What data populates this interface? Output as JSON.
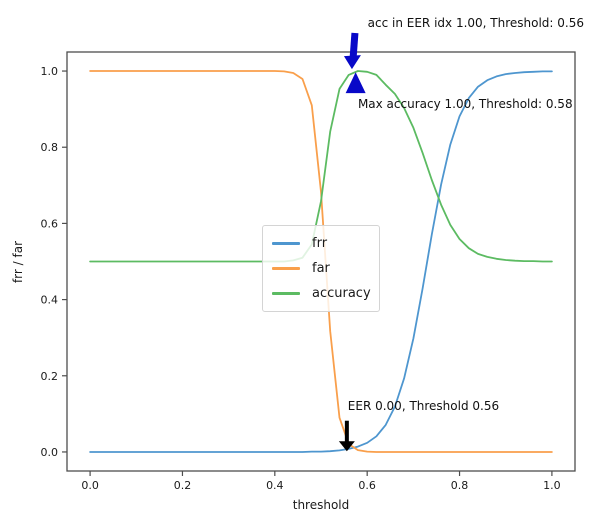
{
  "figure": {
    "background": "#ffffff",
    "spine_color": "#4d4d4d",
    "tick_color": "#1a1a1a"
  },
  "chart_data": {
    "type": "line",
    "title": "",
    "xlabel": "threshold",
    "ylabel": "frr / far",
    "xlim": [
      -0.05,
      1.05
    ],
    "ylim": [
      -0.05,
      1.05
    ],
    "xticks": [
      "0.0",
      "0.2",
      "0.4",
      "0.6",
      "0.8",
      "1.0"
    ],
    "yticks": [
      "0.0",
      "0.2",
      "0.4",
      "0.6",
      "0.8",
      "1.0"
    ],
    "grid": false,
    "legend": {
      "position": "center",
      "entries": [
        "frr",
        "far",
        "accuracy"
      ]
    },
    "x": [
      0.0,
      0.02,
      0.04,
      0.06,
      0.08,
      0.1,
      0.12,
      0.14,
      0.16,
      0.18,
      0.2,
      0.22,
      0.24,
      0.26,
      0.28,
      0.3,
      0.32,
      0.34,
      0.36,
      0.38,
      0.4,
      0.42,
      0.44,
      0.46,
      0.48,
      0.5,
      0.52,
      0.54,
      0.56,
      0.58,
      0.6,
      0.62,
      0.64,
      0.66,
      0.68,
      0.7,
      0.72,
      0.74,
      0.76,
      0.78,
      0.8,
      0.82,
      0.84,
      0.86,
      0.88,
      0.9,
      0.92,
      0.94,
      0.96,
      0.98,
      1.0
    ],
    "series": [
      {
        "name": "frr",
        "color": "#4e96cf",
        "values": [
          0.0,
          0.0,
          0.0,
          0.0,
          0.0,
          0.0,
          0.0,
          0.0,
          0.0,
          0.0,
          0.0,
          0.0,
          0.0,
          0.0,
          0.0,
          0.0,
          0.0,
          0.0,
          0.0,
          0.0,
          0.0,
          0.0,
          0.0,
          0.0,
          0.001,
          0.001,
          0.002,
          0.004,
          0.008,
          0.014,
          0.024,
          0.041,
          0.071,
          0.119,
          0.193,
          0.298,
          0.429,
          0.571,
          0.702,
          0.807,
          0.881,
          0.929,
          0.959,
          0.976,
          0.986,
          0.992,
          0.995,
          0.997,
          0.998,
          0.999,
          0.999
        ]
      },
      {
        "name": "far",
        "color": "#f99f4b",
        "values": [
          1.0,
          1.0,
          1.0,
          1.0,
          1.0,
          1.0,
          1.0,
          1.0,
          1.0,
          1.0,
          1.0,
          1.0,
          1.0,
          1.0,
          1.0,
          1.0,
          1.0,
          1.0,
          1.0,
          1.0,
          1.0,
          0.999,
          0.995,
          0.979,
          0.91,
          0.683,
          0.317,
          0.09,
          0.021,
          0.005,
          0.001,
          0.0,
          0.0,
          0.0,
          0.0,
          0.0,
          0.0,
          0.0,
          0.0,
          0.0,
          0.0,
          0.0,
          0.0,
          0.0,
          0.0,
          0.0,
          0.0,
          0.0,
          0.0,
          0.0,
          0.0
        ]
      },
      {
        "name": "accuracy",
        "color": "#5cbb62",
        "values": [
          0.5,
          0.5,
          0.5,
          0.5,
          0.5,
          0.5,
          0.5,
          0.5,
          0.5,
          0.5,
          0.5,
          0.5,
          0.5,
          0.5,
          0.5,
          0.5,
          0.5,
          0.5,
          0.5,
          0.5,
          0.5,
          0.5,
          0.503,
          0.51,
          0.545,
          0.658,
          0.841,
          0.953,
          0.99,
          1.0,
          0.998,
          0.99,
          0.964,
          0.94,
          0.903,
          0.851,
          0.785,
          0.714,
          0.649,
          0.596,
          0.559,
          0.535,
          0.52,
          0.512,
          0.507,
          0.504,
          0.502,
          0.501,
          0.501,
          0.5,
          0.5
        ]
      }
    ],
    "annotations": [
      {
        "name": "acc-in-eer",
        "text": "acc in EER idx 1.00, Threshold: 0.56",
        "text_x": 0.601,
        "text_y": 1.123,
        "arrow": {
          "type": "fancy-down",
          "color": "#0808c8",
          "x": 0.567,
          "y_tip": 1.005,
          "y_tail": 1.1
        }
      },
      {
        "name": "max-accuracy",
        "text": "Max accuracy 1.00, Threshold: 0.58",
        "text_x": 0.58,
        "text_y": 0.911,
        "arrow": {
          "type": "triangle-up",
          "color": "#0808c8",
          "x": 0.575,
          "y_tip": 0.997,
          "y_base": 0.942
        }
      },
      {
        "name": "eer",
        "text": "EER 0.00, Threshold 0.56",
        "text_x": 0.558,
        "text_y": 0.118,
        "arrow": {
          "type": "plain-down",
          "color": "#000000",
          "x": 0.556,
          "y_tip": 0.002,
          "y_tail": 0.082
        }
      }
    ]
  }
}
